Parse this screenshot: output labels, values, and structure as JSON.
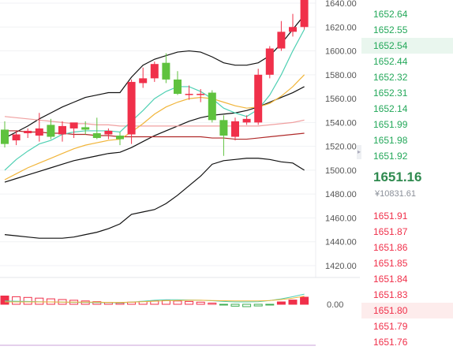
{
  "chart_data": [
    {
      "type": "candlestick",
      "y_ticks": [
        "1640.00",
        "1620.00",
        "1600.00",
        "1580.00",
        "1560.00",
        "1540.00",
        "1520.00",
        "1500.00",
        "1480.00",
        "1460.00",
        "1440.00",
        "1420.00"
      ],
      "ylim": [
        1415,
        1643
      ],
      "candles": [
        {
          "o": 1534,
          "h": 1541,
          "l": 1519,
          "c": 1522
        },
        {
          "o": 1525,
          "h": 1533,
          "l": 1521,
          "c": 1530
        },
        {
          "o": 1531,
          "h": 1535,
          "l": 1527,
          "c": 1533
        },
        {
          "o": 1529,
          "h": 1548,
          "l": 1524,
          "c": 1535
        },
        {
          "o": 1538,
          "h": 1543,
          "l": 1526,
          "c": 1528
        },
        {
          "o": 1530,
          "h": 1541,
          "l": 1524,
          "c": 1537
        },
        {
          "o": 1535,
          "h": 1539,
          "l": 1527,
          "c": 1540
        },
        {
          "o": 1536,
          "h": 1541,
          "l": 1530,
          "c": 1534
        },
        {
          "o": 1531,
          "h": 1544,
          "l": 1526,
          "c": 1527
        },
        {
          "o": 1530,
          "h": 1535,
          "l": 1526,
          "c": 1533
        },
        {
          "o": 1529,
          "h": 1532,
          "l": 1521,
          "c": 1526
        },
        {
          "o": 1530,
          "h": 1576,
          "l": 1522,
          "c": 1574
        },
        {
          "o": 1573,
          "h": 1586,
          "l": 1569,
          "c": 1577
        },
        {
          "o": 1577,
          "h": 1591,
          "l": 1574,
          "c": 1589
        },
        {
          "o": 1590,
          "h": 1598,
          "l": 1573,
          "c": 1576
        },
        {
          "o": 1576,
          "h": 1583,
          "l": 1563,
          "c": 1564
        },
        {
          "o": 1564,
          "h": 1571,
          "l": 1559,
          "c": 1564
        },
        {
          "o": 1564,
          "h": 1568,
          "l": 1557,
          "c": 1564
        },
        {
          "o": 1565,
          "h": 1567,
          "l": 1540,
          "c": 1542
        },
        {
          "o": 1542,
          "h": 1546,
          "l": 1512,
          "c": 1529
        },
        {
          "o": 1528,
          "h": 1544,
          "l": 1525,
          "c": 1541
        },
        {
          "o": 1540,
          "h": 1546,
          "l": 1538,
          "c": 1543
        },
        {
          "o": 1540,
          "h": 1585,
          "l": 1538,
          "c": 1580
        },
        {
          "o": 1580,
          "h": 1604,
          "l": 1577,
          "c": 1602
        },
        {
          "o": 1602,
          "h": 1625,
          "l": 1600,
          "c": 1616
        },
        {
          "o": 1616,
          "h": 1631,
          "l": 1612,
          "c": 1620
        },
        {
          "o": 1620,
          "h": 1645,
          "l": 1618,
          "c": 1645
        }
      ],
      "ma_fast": [
        1500,
        1509,
        1516,
        1522,
        1525,
        1530,
        1532,
        1533,
        1533,
        1533,
        1532,
        1541,
        1550,
        1560,
        1566,
        1570,
        1570,
        1566,
        1560,
        1552,
        1548,
        1545,
        1551,
        1563,
        1580,
        1600,
        1618
      ],
      "ma_mid": [
        1492,
        1497,
        1502,
        1506,
        1510,
        1514,
        1518,
        1521,
        1523,
        1525,
        1526,
        1532,
        1539,
        1547,
        1553,
        1557,
        1560,
        1561,
        1560,
        1557,
        1554,
        1552,
        1553,
        1556,
        1562,
        1570,
        1580
      ],
      "ma_slow": [
        1490,
        1493,
        1496,
        1499,
        1502,
        1505,
        1508,
        1510,
        1512,
        1514,
        1515,
        1519,
        1524,
        1529,
        1533,
        1537,
        1541,
        1544,
        1546,
        1547,
        1548,
        1550,
        1553,
        1557,
        1561,
        1565,
        1570
      ],
      "flat_red": [
        1545,
        1544,
        1543,
        1542,
        1541,
        1540,
        1539,
        1539,
        1538,
        1538,
        1537,
        1537,
        1537,
        1537,
        1537,
        1537,
        1537,
        1537,
        1537,
        1537,
        1537,
        1537,
        1537,
        1538,
        1539,
        1540,
        1542
      ],
      "flat_dark": [
        1533,
        1533,
        1532,
        1532,
        1531,
        1531,
        1530,
        1530,
        1529,
        1529,
        1528,
        1528,
        1528,
        1528,
        1528,
        1528,
        1528,
        1528,
        1527,
        1527,
        1526,
        1526,
        1527,
        1528,
        1529,
        1530,
        1531
      ],
      "boll_upper": [
        1527,
        1532,
        1537,
        1543,
        1548,
        1553,
        1557,
        1561,
        1563,
        1565,
        1565,
        1578,
        1588,
        1593,
        1596,
        1599,
        1600,
        1599,
        1595,
        1590,
        1588,
        1588,
        1590,
        1596,
        1606,
        1618,
        1630
      ],
      "boll_lower": [
        1446,
        1445,
        1444,
        1443,
        1443,
        1443,
        1444,
        1446,
        1448,
        1451,
        1455,
        1463,
        1465,
        1467,
        1472,
        1479,
        1487,
        1495,
        1505,
        1508,
        1509,
        1510,
        1510,
        1509,
        1507,
        1506,
        1500
      ]
    },
    {
      "type": "bar",
      "y_ticks": [
        "0.00"
      ],
      "ylim": [
        -4,
        6
      ],
      "values": [
        3.5,
        3.2,
        2.9,
        2.6,
        2.3,
        2.0,
        1.7,
        1.4,
        1.1,
        0.8,
        0.5,
        0.9,
        1.2,
        1.5,
        1.6,
        1.4,
        1.2,
        0.9,
        0.5,
        -0.3,
        -0.8,
        -1.0,
        -0.7,
        -0.2,
        1.0,
        1.8,
        3.0
      ],
      "dif": [
        1.4,
        1.3,
        1.2,
        1.1,
        1.0,
        0.9,
        0.8,
        0.8,
        0.7,
        0.7,
        0.6,
        0.9,
        1.3,
        1.7,
        1.9,
        1.9,
        1.8,
        1.7,
        1.5,
        1.2,
        1.0,
        1.0,
        1.1,
        1.6,
        2.3,
        3.2,
        4.3
      ],
      "dea": [
        1.0,
        1.0,
        1.0,
        1.0,
        1.0,
        0.9,
        0.9,
        0.9,
        0.9,
        0.8,
        0.8,
        0.9,
        1.1,
        1.3,
        1.5,
        1.6,
        1.7,
        1.7,
        1.6,
        1.5,
        1.4,
        1.4,
        1.4,
        1.6,
        2.0,
        2.6,
        3.4
      ]
    }
  ],
  "orderbook": {
    "asks": [
      "1652.64",
      "1652.55",
      "1652.54",
      "1652.44",
      "1652.32",
      "1652.31",
      "1652.14",
      "1651.99",
      "1651.98",
      "1651.92"
    ],
    "last_price": "1651.16",
    "cny_price": "¥10831.61",
    "bids": [
      "1651.91",
      "1651.87",
      "1651.86",
      "1651.85",
      "1651.84",
      "1651.83",
      "1651.80",
      "1651.79",
      "1651.76"
    ],
    "colors": {
      "up": "#f0304a",
      "down": "#5fc23e",
      "ask_text": "#24a85a",
      "bid_text": "#f0304a"
    }
  }
}
